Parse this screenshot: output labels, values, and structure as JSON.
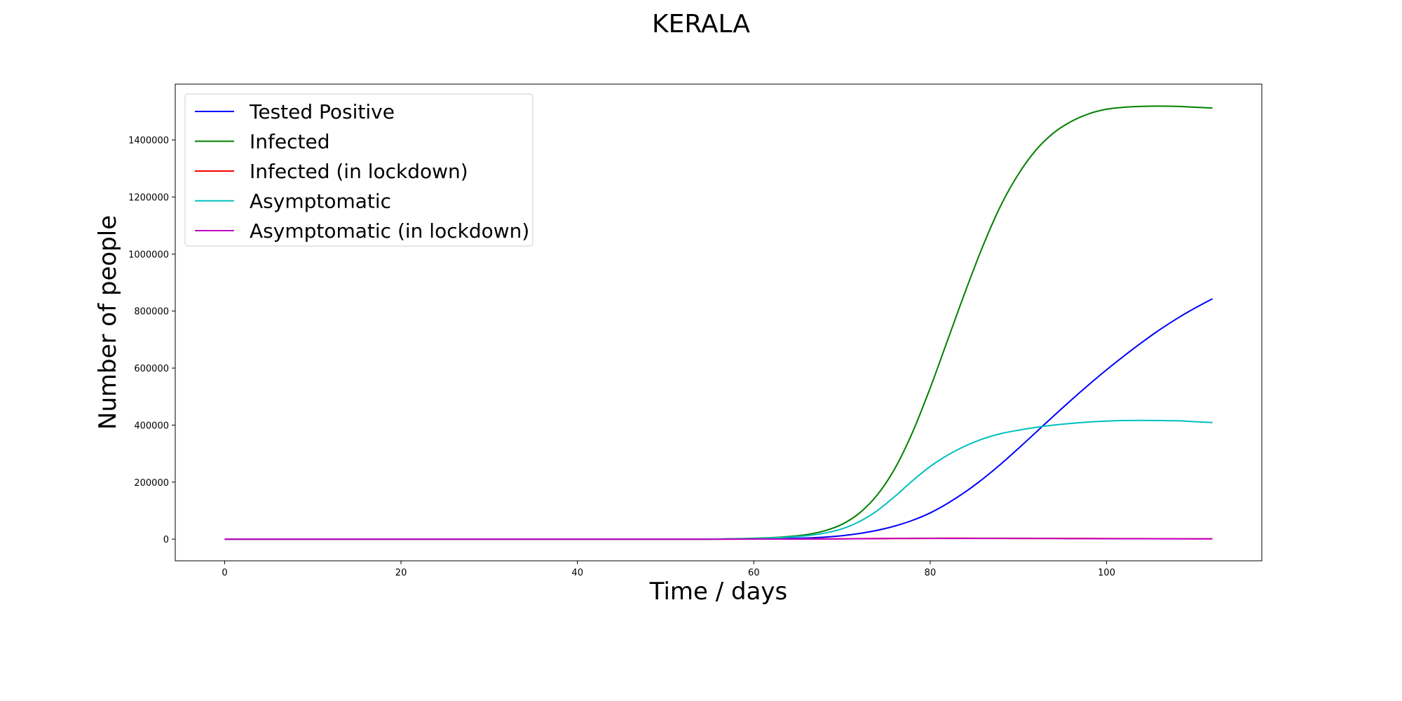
{
  "chart_data": {
    "type": "line",
    "title": "KERALA",
    "xlabel": "Time / days",
    "ylabel": "Number of people",
    "xlim": [
      -5.6,
      117.6
    ],
    "ylim": [
      -76000,
      1596000
    ],
    "xticks": [
      0,
      20,
      40,
      60,
      80,
      100
    ],
    "yticks": [
      0,
      200000,
      400000,
      600000,
      800000,
      1000000,
      1200000,
      1400000
    ],
    "grid": false,
    "legend_position": "upper-left",
    "x": [
      0,
      10,
      20,
      30,
      40,
      50,
      55,
      60,
      62,
      64,
      66,
      68,
      70,
      72,
      74,
      76,
      78,
      80,
      82,
      84,
      86,
      88,
      90,
      92,
      94,
      96,
      98,
      100,
      102,
      104,
      106,
      108,
      110,
      112
    ],
    "series": [
      {
        "name": "Tested Positive",
        "color": "#0000ff",
        "values": [
          0,
          0,
          0,
          0,
          0,
          0,
          0,
          1000,
          1500,
          2500,
          4000,
          7000,
          12000,
          20000,
          31000,
          46000,
          66000,
          92000,
          126000,
          166000,
          212000,
          263000,
          318000,
          375000,
          432000,
          488000,
          542000,
          594000,
          643000,
          690000,
          734000,
          774000,
          810000,
          843000
        ]
      },
      {
        "name": "Infected",
        "color": "#008000",
        "values": [
          0,
          0,
          0,
          0,
          0,
          0,
          0,
          3000,
          5000,
          9000,
          16000,
          29000,
          52000,
          92000,
          155000,
          248000,
          375000,
          530000,
          700000,
          870000,
          1030000,
          1170000,
          1280000,
          1365000,
          1425000,
          1465000,
          1492000,
          1508000,
          1515000,
          1518000,
          1519000,
          1518000,
          1515000,
          1512000
        ]
      },
      {
        "name": "Infected (in lockdown)",
        "color": "#ff0000",
        "values": [
          0,
          0,
          0,
          0,
          0,
          0,
          0,
          100,
          200,
          300,
          500,
          800,
          1200,
          1700,
          2200,
          2600,
          2900,
          3100,
          3200,
          3200,
          3100,
          3000,
          2900,
          2800,
          2600,
          2500,
          2300,
          2100,
          1900,
          1700,
          1500,
          1300,
          1100,
          1000
        ]
      },
      {
        "name": "Asymptomatic",
        "color": "#00bfbf",
        "values": [
          0,
          0,
          0,
          0,
          0,
          0,
          0,
          2000,
          4000,
          7000,
          12000,
          21000,
          36000,
          62000,
          100000,
          150000,
          205000,
          255000,
          295000,
          327000,
          352000,
          370000,
          382000,
          392000,
          400000,
          406000,
          411000,
          414000,
          416000,
          416500,
          416000,
          415000,
          412000,
          409000
        ]
      },
      {
        "name": "Asymptomatic (in lockdown)",
        "color": "#bf00bf",
        "values": [
          0,
          0,
          0,
          0,
          0,
          0,
          0,
          80,
          150,
          250,
          400,
          650,
          950,
          1300,
          1700,
          2000,
          2200,
          2400,
          2500,
          2500,
          2400,
          2300,
          2200,
          2100,
          2000,
          1900,
          1750,
          1600,
          1450,
          1300,
          1150,
          1000,
          900,
          800
        ]
      }
    ]
  }
}
